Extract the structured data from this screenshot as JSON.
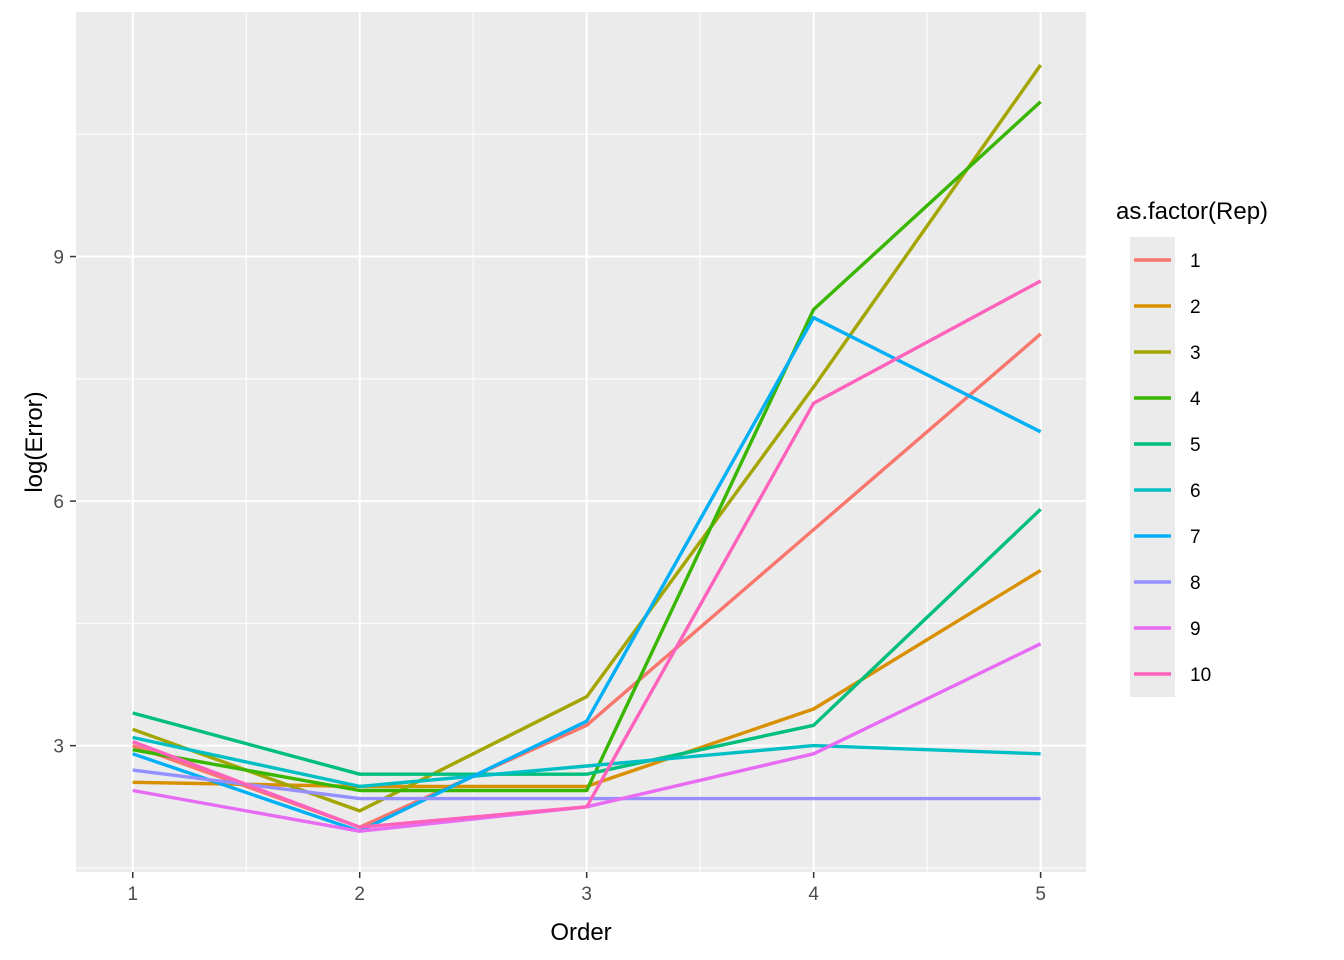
{
  "chart_data": {
    "type": "line",
    "xlabel": "Order",
    "ylabel": "log(Error)",
    "x": [
      1,
      2,
      3,
      4,
      5
    ],
    "x_ticks": [
      "1",
      "2",
      "3",
      "4",
      "5"
    ],
    "y_ticks": [
      3,
      6,
      9
    ],
    "xlim": [
      0.75,
      5.2
    ],
    "ylim": [
      1.45,
      12.0
    ],
    "grid": true,
    "legend": {
      "title": "as.factor(Rep)",
      "position": "right"
    },
    "series": [
      {
        "name": "1",
        "color": "#F8766D",
        "values": [
          3.0,
          2.0,
          3.25,
          5.65,
          8.05
        ]
      },
      {
        "name": "2",
        "color": "#D89000",
        "values": [
          2.55,
          2.5,
          2.5,
          3.45,
          5.15
        ]
      },
      {
        "name": "3",
        "color": "#A3A500",
        "values": [
          3.2,
          2.2,
          3.6,
          7.4,
          11.35
        ]
      },
      {
        "name": "4",
        "color": "#39B600",
        "values": [
          2.95,
          2.45,
          2.45,
          8.35,
          10.9
        ]
      },
      {
        "name": "5",
        "color": "#00BF7D",
        "values": [
          3.4,
          2.65,
          2.65,
          3.25,
          5.9
        ]
      },
      {
        "name": "6",
        "color": "#00BFC4",
        "values": [
          3.1,
          2.5,
          2.75,
          3.0,
          2.9
        ]
      },
      {
        "name": "7",
        "color": "#00B0F6",
        "values": [
          2.9,
          1.95,
          3.3,
          8.25,
          6.85
        ]
      },
      {
        "name": "8",
        "color": "#9590FF",
        "values": [
          2.7,
          2.35,
          2.35,
          2.35,
          2.35
        ]
      },
      {
        "name": "9",
        "color": "#E76BF3",
        "values": [
          2.45,
          1.95,
          2.25,
          2.9,
          4.25
        ]
      },
      {
        "name": "10",
        "color": "#FF62BC",
        "values": [
          3.05,
          2.0,
          2.25,
          7.2,
          8.7
        ]
      }
    ]
  }
}
